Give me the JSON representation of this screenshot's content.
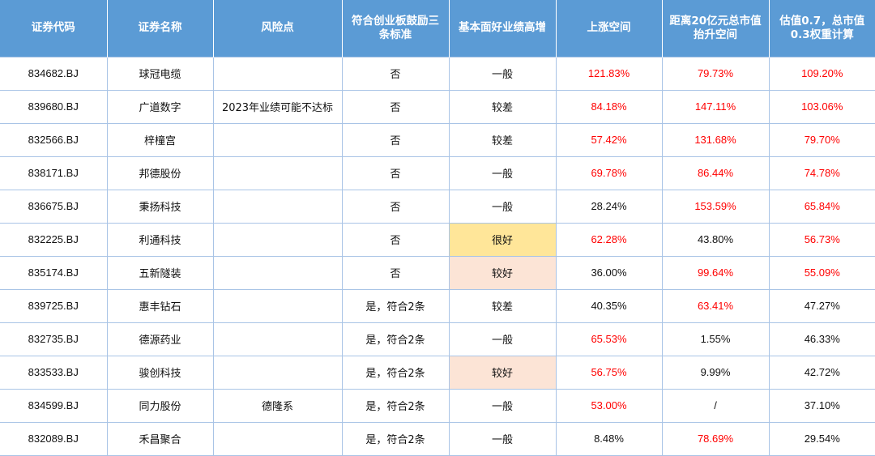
{
  "colors": {
    "header_bg": "#5b9bd5",
    "positive_red": "#ff0000",
    "highlight_gold": "#ffe699",
    "highlight_peach": "#fce4d6",
    "grid_line": "#a9c4e6"
  },
  "table": {
    "headers": [
      "证券代码",
      "证券名称",
      "风险点",
      "符合创业板鼓励三条标准",
      "基本面好业绩高增",
      "上涨空间",
      "距离20亿元总市值抬升空间",
      "估值0.7，总市值0.3权重计算"
    ],
    "rows": [
      {
        "code": "834682.BJ",
        "name": "球冠电缆",
        "risk": "",
        "criteria": "否",
        "fundamental": "一般",
        "upside": "121.83%",
        "mcap_gap": "79.73%",
        "weighted": "109.20%"
      },
      {
        "code": "839680.BJ",
        "name": "广道数字",
        "risk": "2023年业绩可能不达标",
        "criteria": "否",
        "fundamental": "较差",
        "upside": "84.18%",
        "mcap_gap": "147.11%",
        "weighted": "103.06%"
      },
      {
        "code": "832566.BJ",
        "name": "梓橦宫",
        "risk": "",
        "criteria": "否",
        "fundamental": "较差",
        "upside": "57.42%",
        "mcap_gap": "131.68%",
        "weighted": "79.70%"
      },
      {
        "code": "838171.BJ",
        "name": "邦德股份",
        "risk": "",
        "criteria": "否",
        "fundamental": "一般",
        "upside": "69.78%",
        "mcap_gap": "86.44%",
        "weighted": "74.78%"
      },
      {
        "code": "836675.BJ",
        "name": "秉扬科技",
        "risk": "",
        "criteria": "否",
        "fundamental": "一般",
        "upside": "28.24%",
        "mcap_gap": "153.59%",
        "weighted": "65.84%"
      },
      {
        "code": "832225.BJ",
        "name": "利通科技",
        "risk": "",
        "criteria": "否",
        "fundamental": "很好",
        "upside": "62.28%",
        "mcap_gap": "43.80%",
        "weighted": "56.73%"
      },
      {
        "code": "835174.BJ",
        "name": "五新隧装",
        "risk": "",
        "criteria": "否",
        "fundamental": "较好",
        "upside": "36.00%",
        "mcap_gap": "99.64%",
        "weighted": "55.09%"
      },
      {
        "code": "839725.BJ",
        "name": "惠丰钻石",
        "risk": "",
        "criteria": "是，符合2条",
        "fundamental": "较差",
        "upside": "40.35%",
        "mcap_gap": "63.41%",
        "weighted": "47.27%"
      },
      {
        "code": "832735.BJ",
        "name": "德源药业",
        "risk": "",
        "criteria": "是，符合2条",
        "fundamental": "一般",
        "upside": "65.53%",
        "mcap_gap": "1.55%",
        "weighted": "46.33%"
      },
      {
        "code": "833533.BJ",
        "name": "骏创科技",
        "risk": "",
        "criteria": "是，符合2条",
        "fundamental": "较好",
        "upside": "56.75%",
        "mcap_gap": "9.99%",
        "weighted": "42.72%"
      },
      {
        "code": "834599.BJ",
        "name": "同力股份",
        "risk": "德隆系",
        "criteria": "是，符合2条",
        "fundamental": "一般",
        "upside": "53.00%",
        "mcap_gap": "/",
        "weighted": "37.10%"
      },
      {
        "code": "832089.BJ",
        "name": "禾昌聚合",
        "risk": "",
        "criteria": "是，符合2条",
        "fundamental": "一般",
        "upside": "8.48%",
        "mcap_gap": "78.69%",
        "weighted": "29.54%"
      }
    ]
  }
}
